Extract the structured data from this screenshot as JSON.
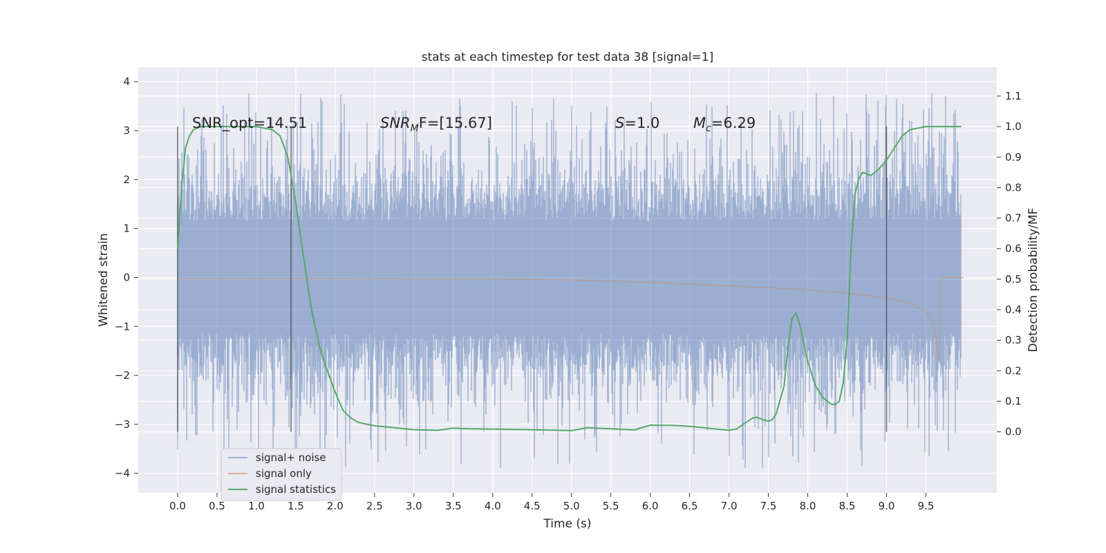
{
  "chart_data": {
    "type": "line",
    "title": "stats at each timestep for test data 38 [signal=1]",
    "xlabel": "Time (s)",
    "ylabel": "Whitened strain",
    "ylabel_right": "Detection probability/MF",
    "xlim": [
      -0.5,
      10.4
    ],
    "ylim": [
      -4.4,
      4.3
    ],
    "ylim_right": [
      -0.2,
      1.195
    ],
    "x_ticks": [
      "0.0",
      "0.5",
      "1.0",
      "1.5",
      "2.0",
      "2.5",
      "3.0",
      "3.5",
      "4.0",
      "4.5",
      "5.0",
      "5.5",
      "6.0",
      "6.5",
      "7.0",
      "7.5",
      "8.0",
      "8.5",
      "9.0",
      "9.5"
    ],
    "y_ticks": [
      "4",
      "3",
      "2",
      "1",
      "0",
      "−1",
      "−2",
      "−3",
      "−4"
    ],
    "y_ticks_right": [
      "1.1",
      "1.0",
      "0.9",
      "0.8",
      "0.7",
      "0.6",
      "0.5",
      "0.4",
      "0.3",
      "0.2",
      "0.1",
      "0.0"
    ],
    "grid": true,
    "legend_placement": "lower-left",
    "annotations": {
      "snr_opt": "SNR_opt=14.51",
      "snr_mf_base": "SNR",
      "snr_mf_sub": "M",
      "snr_mf_rest": "F=[15.67]",
      "s_sym": "S",
      "s_val": "=1.0",
      "mc_base": "M",
      "mc_sub": "c",
      "mc_val": "=6.29"
    },
    "vertical_markers_x": [
      0.0,
      1.44,
      9.0
    ],
    "series": [
      {
        "name": "signal+ noise",
        "color": "#4c72b0",
        "description_noise_envelope": {
          "x": [
            0.0,
            9.95
          ],
          "y_min": -4.05,
          "y_max": 3.88
        }
      },
      {
        "name": "signal only",
        "color": "#dd8452",
        "envelope": {
          "x": [
            0.0,
            2.0,
            4.0,
            5.0,
            6.0,
            7.0,
            8.0,
            8.5,
            9.0,
            9.3,
            9.5,
            9.6,
            9.65,
            9.68
          ],
          "amp": [
            0.02,
            0.02,
            0.03,
            0.05,
            0.1,
            0.17,
            0.25,
            0.32,
            0.42,
            0.52,
            0.7,
            0.95,
            1.55,
            1.8
          ]
        }
      },
      {
        "name": "signal statistics",
        "color": "#55a868",
        "x": [
          0.0,
          0.05,
          0.1,
          0.15,
          0.2,
          0.3,
          0.5,
          0.8,
          1.0,
          1.2,
          1.3,
          1.4,
          1.5,
          1.6,
          1.7,
          1.8,
          1.9,
          2.0,
          2.1,
          2.2,
          2.3,
          2.5,
          3.0,
          3.3,
          3.5,
          3.7,
          4.0,
          4.5,
          5.0,
          5.2,
          5.5,
          5.8,
          6.0,
          6.3,
          6.5,
          7.0,
          7.1,
          7.2,
          7.3,
          7.35,
          7.45,
          7.5,
          7.55,
          7.6,
          7.7,
          7.75,
          7.8,
          7.85,
          7.9,
          8.0,
          8.1,
          8.2,
          8.3,
          8.35,
          8.4,
          8.45,
          8.5,
          8.55,
          8.6,
          8.65,
          8.7,
          8.8,
          8.9,
          9.0,
          9.1,
          9.2,
          9.3,
          9.5,
          9.95
        ],
        "y": [
          0.6,
          0.8,
          0.93,
          0.97,
          0.99,
          1.0,
          1.0,
          1.0,
          1.0,
          0.99,
          0.97,
          0.9,
          0.75,
          0.57,
          0.4,
          0.28,
          0.2,
          0.13,
          0.07,
          0.045,
          0.03,
          0.02,
          0.007,
          0.005,
          0.012,
          0.01,
          0.009,
          0.007,
          0.004,
          0.013,
          0.01,
          0.006,
          0.022,
          0.021,
          0.018,
          0.005,
          0.01,
          0.028,
          0.045,
          0.048,
          0.038,
          0.035,
          0.04,
          0.06,
          0.15,
          0.28,
          0.37,
          0.39,
          0.35,
          0.23,
          0.15,
          0.11,
          0.09,
          0.09,
          0.1,
          0.16,
          0.3,
          0.6,
          0.78,
          0.83,
          0.85,
          0.84,
          0.86,
          0.89,
          0.93,
          0.97,
          0.99,
          1.0,
          1.0
        ]
      }
    ]
  }
}
